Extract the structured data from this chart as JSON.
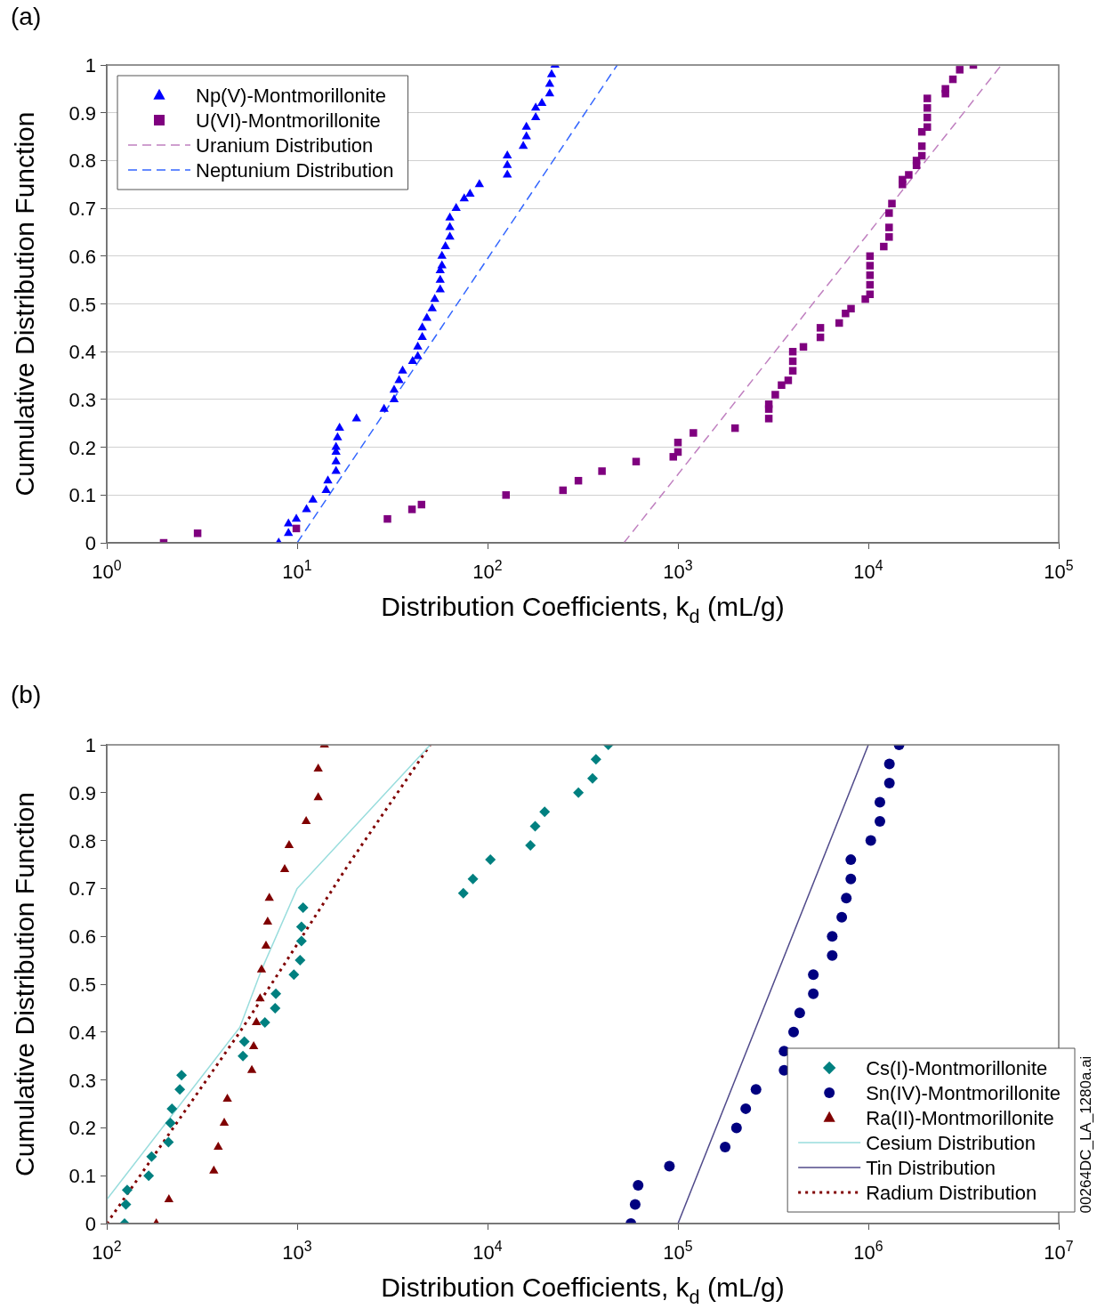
{
  "chart_data": [
    {
      "type": "scatter",
      "title": "(a)",
      "xlabel": "Distribution Coefficients, k$_{d}$ (mL/g)",
      "ylabel": "Cumulative Distribution Function",
      "log": "x",
      "grid": "y",
      "legend": "top left",
      "xlim": [
        1,
        100000
      ],
      "xticks": [
        {
          "value": 1,
          "label": "10$^{0}$"
        },
        {
          "value": 10,
          "label": "10$^{1}$"
        },
        {
          "value": 100,
          "label": "10$^{2}$"
        },
        {
          "value": 1000,
          "label": "10$^{3}$"
        },
        {
          "value": 10000,
          "label": "10$^{4}$"
        },
        {
          "value": 100000,
          "label": "10$^{5}$"
        }
      ],
      "ylim": [
        0,
        1
      ],
      "yticks": [
        0,
        0.1,
        0.2,
        0.3,
        0.4,
        0.5,
        0.6,
        0.7,
        0.8,
        0.9,
        1
      ],
      "series": [
        {
          "name": "Np(V)-Montmorillonite",
          "type": "scatter",
          "marker": "triangle",
          "color": "#0000ff",
          "x": [
            8.0,
            9.0,
            9.0,
            9.9,
            11.2,
            12.1,
            14.2,
            14.5,
            16.0,
            16.0,
            16.0,
            16.0,
            16.3,
            16.7,
            20.5,
            28.6,
            32.3,
            32.3,
            34.3,
            35.8,
            40.4,
            43.0,
            43.0,
            45.4,
            45.4,
            48.0,
            51.2,
            52.8,
            56.4,
            56.4,
            56.4,
            57.6,
            57.6,
            60.1,
            63.4,
            63.4,
            63.4,
            68.4,
            75.4,
            80.9,
            90.6,
            127,
            127,
            127,
            154,
            160,
            160,
            179,
            179,
            193,
            212,
            212,
            217,
            226
          ],
          "values": [
            0,
            0.02,
            0.04,
            0.05,
            0.07,
            0.09,
            0.11,
            0.13,
            0.15,
            0.17,
            0.19,
            0.2,
            0.22,
            0.24,
            0.26,
            0.28,
            0.3,
            0.32,
            0.34,
            0.36,
            0.38,
            0.39,
            0.41,
            0.43,
            0.45,
            0.47,
            0.49,
            0.51,
            0.53,
            0.55,
            0.57,
            0.58,
            0.6,
            0.62,
            0.64,
            0.66,
            0.68,
            0.7,
            0.72,
            0.73,
            0.75,
            0.77,
            0.79,
            0.81,
            0.83,
            0.85,
            0.87,
            0.89,
            0.91,
            0.92,
            0.94,
            0.96,
            0.98,
            1.0
          ]
        },
        {
          "name": "U(VI)-Montmorillonite",
          "type": "scatter",
          "marker": "square",
          "color": "#7f007f",
          "x": [
            1.99,
            3.0,
            9.9,
            29.8,
            40.1,
            45,
            125,
            249,
            300,
            399,
            603,
            945,
            1000,
            1000,
            1205,
            1995,
            3000,
            3000,
            3000,
            3245,
            3500,
            3795,
            4010,
            4010,
            4010,
            4560,
            5600,
            5600,
            7030,
            7590,
            8110,
            9640,
            10200,
            10200,
            10200,
            10200,
            10200,
            12050,
            12850,
            12850,
            12850,
            13300,
            15100,
            15100,
            16300,
            17900,
            17900,
            19100,
            19100,
            19100,
            20400,
            20400,
            20400,
            20400,
            25400,
            25400,
            27800,
            30200,
            35600
          ],
          "values": [
            0,
            0.02,
            0.03,
            0.05,
            0.07,
            0.08,
            0.1,
            0.11,
            0.13,
            0.15,
            0.17,
            0.18,
            0.19,
            0.21,
            0.23,
            0.24,
            0.26,
            0.28,
            0.29,
            0.31,
            0.33,
            0.34,
            0.36,
            0.38,
            0.4,
            0.41,
            0.43,
            0.45,
            0.46,
            0.48,
            0.49,
            0.51,
            0.52,
            0.54,
            0.56,
            0.58,
            0.6,
            0.62,
            0.64,
            0.66,
            0.69,
            0.71,
            0.75,
            0.76,
            0.77,
            0.79,
            0.8,
            0.81,
            0.83,
            0.86,
            0.87,
            0.89,
            0.91,
            0.93,
            0.94,
            0.95,
            0.97,
            0.99,
            1.0
          ]
        },
        {
          "name": "Uranium Distribution",
          "type": "line",
          "marker": "none",
          "line_style": "dashed",
          "color": "#c080c0",
          "x": [
            520,
            50000
          ],
          "values": [
            0,
            1
          ]
        },
        {
          "name": "Neptunium Distribution",
          "type": "line",
          "marker": "none",
          "line_style": "dashed",
          "color": "#3366ff",
          "x": [
            10,
            480
          ],
          "values": [
            0,
            1
          ]
        }
      ]
    },
    {
      "type": "scatter",
      "title": "(b)",
      "xlabel": "Distribution Coefficients, k$_{d}$ (mL/g)",
      "ylabel": "Cumulative Distribution Function",
      "log": "x",
      "legend": "bottom right",
      "annotations": [
        "00264DC_LA_1280a.ai"
      ],
      "xlim": [
        100,
        10000000
      ],
      "xticks": [
        {
          "value": 100,
          "label": "10$^{2}$"
        },
        {
          "value": 1000,
          "label": "10$^{3}$"
        },
        {
          "value": 10000,
          "label": "10$^{4}$"
        },
        {
          "value": 100000,
          "label": "10$^{5}$"
        },
        {
          "value": 1000000,
          "label": "10$^{6}$"
        },
        {
          "value": 10000000,
          "label": "10$^{7}$"
        }
      ],
      "ylim": [
        0,
        1
      ],
      "yticks": [
        0,
        0.1,
        0.2,
        0.3,
        0.4,
        0.5,
        0.6,
        0.7,
        0.8,
        0.9,
        1
      ],
      "series": [
        {
          "name": "Cs(I)-Montmorillonite",
          "type": "scatter",
          "marker": "diamond",
          "color": "#008080",
          "x": [
            124,
            126,
            128,
            166,
            172,
            211,
            216,
            220,
            242,
            247,
            519,
            528,
            677,
            766,
            773,
            961,
            1036,
            1053,
            1053,
            1074,
            7460,
            8380,
            10350,
            16800,
            17780,
            19950,
            30000,
            35600,
            37100,
            43100
          ],
          "values": [
            0,
            0.04,
            0.07,
            0.1,
            0.14,
            0.17,
            0.21,
            0.24,
            0.28,
            0.31,
            0.35,
            0.38,
            0.42,
            0.45,
            0.48,
            0.52,
            0.55,
            0.59,
            0.62,
            0.66,
            0.69,
            0.72,
            0.76,
            0.79,
            0.83,
            0.86,
            0.9,
            0.93,
            0.97,
            1.0
          ]
        },
        {
          "name": "Sn(IV)-Montmorillonite",
          "type": "scatter",
          "marker": "circle",
          "color": "#000080",
          "x": [
            56600,
            59600,
            61800,
            90200,
            177000,
            203000,
            227000,
            257000,
            361000,
            361000,
            405000,
            436000,
            514000,
            514000,
            646000,
            646000,
            725000,
            766000,
            809000,
            809000,
            1030000,
            1150000,
            1150000,
            1290000,
            1290000,
            1450000
          ],
          "values": [
            0,
            0.04,
            0.08,
            0.12,
            0.16,
            0.2,
            0.24,
            0.28,
            0.32,
            0.36,
            0.4,
            0.44,
            0.48,
            0.52,
            0.56,
            0.6,
            0.64,
            0.68,
            0.72,
            0.76,
            0.8,
            0.84,
            0.88,
            0.92,
            0.96,
            1.0
          ]
        },
        {
          "name": "Ra(II)-Montmorillonite",
          "type": "scatter",
          "marker": "triangle",
          "color": "#800000",
          "x": [
            182,
            212,
            365,
            385,
            414,
            430,
            578,
            591,
            611,
            639,
            650,
            686,
            700,
            714,
            860,
            907,
            1115,
            1290,
            1290,
            1390
          ],
          "values": [
            0,
            0.05,
            0.11,
            0.16,
            0.21,
            0.26,
            0.32,
            0.37,
            0.42,
            0.47,
            0.53,
            0.58,
            0.63,
            0.68,
            0.74,
            0.79,
            0.84,
            0.89,
            0.95,
            1.0
          ]
        },
        {
          "name": "Cesium Distribution",
          "type": "line",
          "marker": "none",
          "line_style": "solid",
          "color": "#99dddd",
          "x": [
            100,
            500,
            650,
            1000,
            5000
          ],
          "values": [
            0.05,
            0.41,
            0.53,
            0.7,
            1
          ]
        },
        {
          "name": "Tin Distribution",
          "type": "line",
          "marker": "none",
          "line_style": "solid",
          "color": "#504a8a",
          "x": [
            100000,
            1000000
          ],
          "values": [
            0,
            1
          ]
        },
        {
          "name": "Radium Distribution",
          "type": "line",
          "marker": "none",
          "line_style": "dotted",
          "color": "#800000",
          "x": [
            100,
            500,
            820,
            1860,
            5000
          ],
          "values": [
            0,
            0.4,
            0.53,
            0.75,
            1
          ]
        }
      ]
    }
  ]
}
